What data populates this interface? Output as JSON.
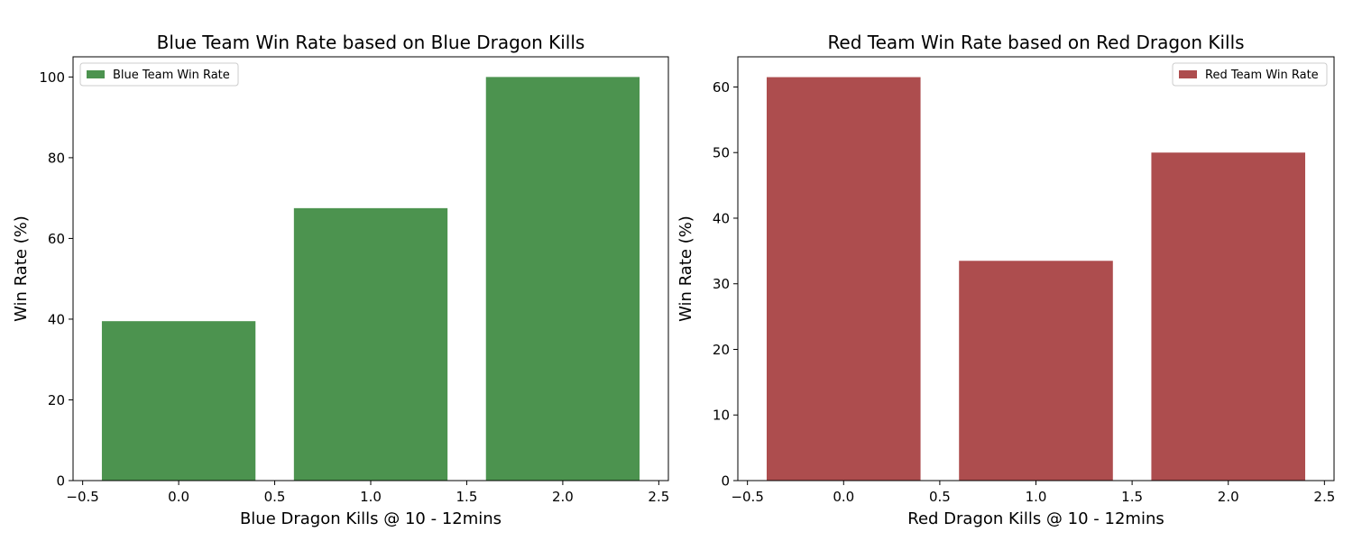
{
  "chart_data": [
    {
      "type": "bar",
      "title": "Blue Team Win Rate based on Blue Dragon Kills",
      "xlabel": "Blue Dragon Kills @ 10 - 12mins",
      "ylabel": "Win Rate (%)",
      "x": [
        0.0,
        1.0,
        2.0
      ],
      "values": [
        39.5,
        67.5,
        100.0
      ],
      "bar_width": 0.8,
      "xlim": [
        -0.55,
        2.55
      ],
      "ylim": [
        0,
        105
      ],
      "xticks": [
        -0.5,
        0.0,
        0.5,
        1.0,
        1.5,
        2.0,
        2.5
      ],
      "xtick_labels": [
        "−0.5",
        "0.0",
        "0.5",
        "1.0",
        "1.5",
        "2.0",
        "2.5"
      ],
      "yticks": [
        0,
        20,
        40,
        60,
        80,
        100
      ],
      "ytick_labels": [
        "0",
        "20",
        "40",
        "60",
        "80",
        "100"
      ],
      "series_name": "Blue Team Win Rate",
      "color": "#4c934f",
      "legend_position": "top-left",
      "grid": false
    },
    {
      "type": "bar",
      "title": "Red Team Win Rate based on Red Dragon Kills",
      "xlabel": "Red Dragon Kills @ 10 - 12mins",
      "ylabel": "Win Rate (%)",
      "x": [
        0.0,
        1.0,
        2.0
      ],
      "values": [
        61.5,
        33.5,
        50.0
      ],
      "bar_width": 0.8,
      "xlim": [
        -0.55,
        2.55
      ],
      "ylim": [
        0,
        64.6
      ],
      "xticks": [
        -0.5,
        0.0,
        0.5,
        1.0,
        1.5,
        2.0,
        2.5
      ],
      "xtick_labels": [
        "−0.5",
        "0.0",
        "0.5",
        "1.0",
        "1.5",
        "2.0",
        "2.5"
      ],
      "yticks": [
        0,
        10,
        20,
        30,
        40,
        50,
        60
      ],
      "ytick_labels": [
        "0",
        "10",
        "20",
        "30",
        "40",
        "50",
        "60"
      ],
      "series_name": "Red Team Win Rate",
      "color": "#ad4d4e",
      "legend_position": "top-right",
      "grid": false
    }
  ]
}
